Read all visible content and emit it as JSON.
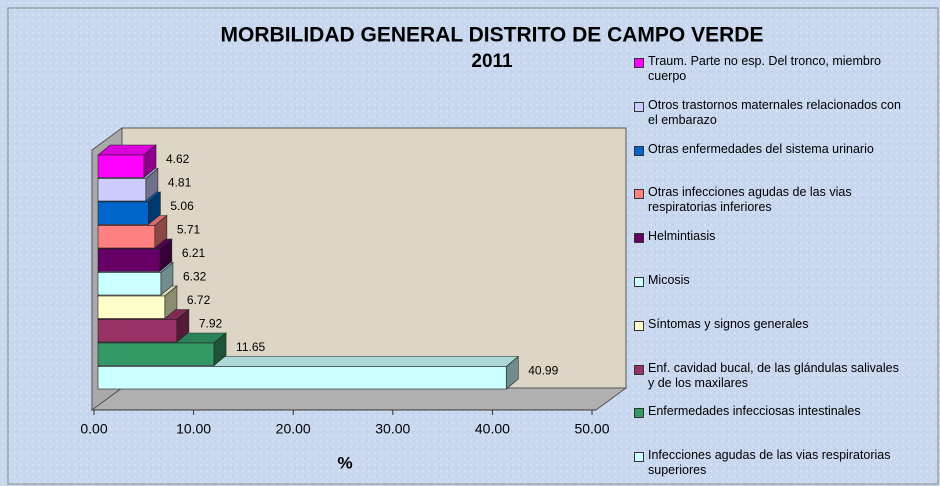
{
  "chart_data": {
    "type": "bar3d_horizontal",
    "title": "MORBILIDAD GENERAL DISTRITO DE CAMPO VERDE",
    "subtitle": "2011",
    "x_label": "%",
    "categories": [
      "Infecciones agudas de las vias respiratorias superiores",
      "Enfermedades infecciosas intestinales",
      "Enf. cavidad bucal, de las glándulas salivales y de los maxilares",
      "Síntomas y signos generales",
      "Micosis",
      "Helmintiasis",
      "Otras infecciones agudas de las vias respiratorias inferiores",
      "Otras enfermedades del sistema urinario",
      "Otros trastornos maternales relacionados con el embarazo",
      "Traum. Parte no esp. Del tronco, miembro cuerpo"
    ],
    "values": [
      40.99,
      11.65,
      7.92,
      6.72,
      6.32,
      6.21,
      5.71,
      5.06,
      4.81,
      4.62
    ],
    "colors": [
      "#ccffff",
      "#339966",
      "#993366",
      "#ffffcc",
      "#ccffff",
      "#660066",
      "#ff8080",
      "#0066cc",
      "#ccccff",
      "#ff00ff"
    ],
    "xlim": [
      0,
      50
    ],
    "xticks": [
      {
        "value": 0,
        "label": "0.00"
      },
      {
        "value": 10,
        "label": "10.00"
      },
      {
        "value": 20,
        "label": "20.00"
      },
      {
        "value": 30,
        "label": "30.00"
      },
      {
        "value": 40,
        "label": "40.00"
      },
      {
        "value": 50,
        "label": "50.00"
      }
    ],
    "legend": "right"
  }
}
